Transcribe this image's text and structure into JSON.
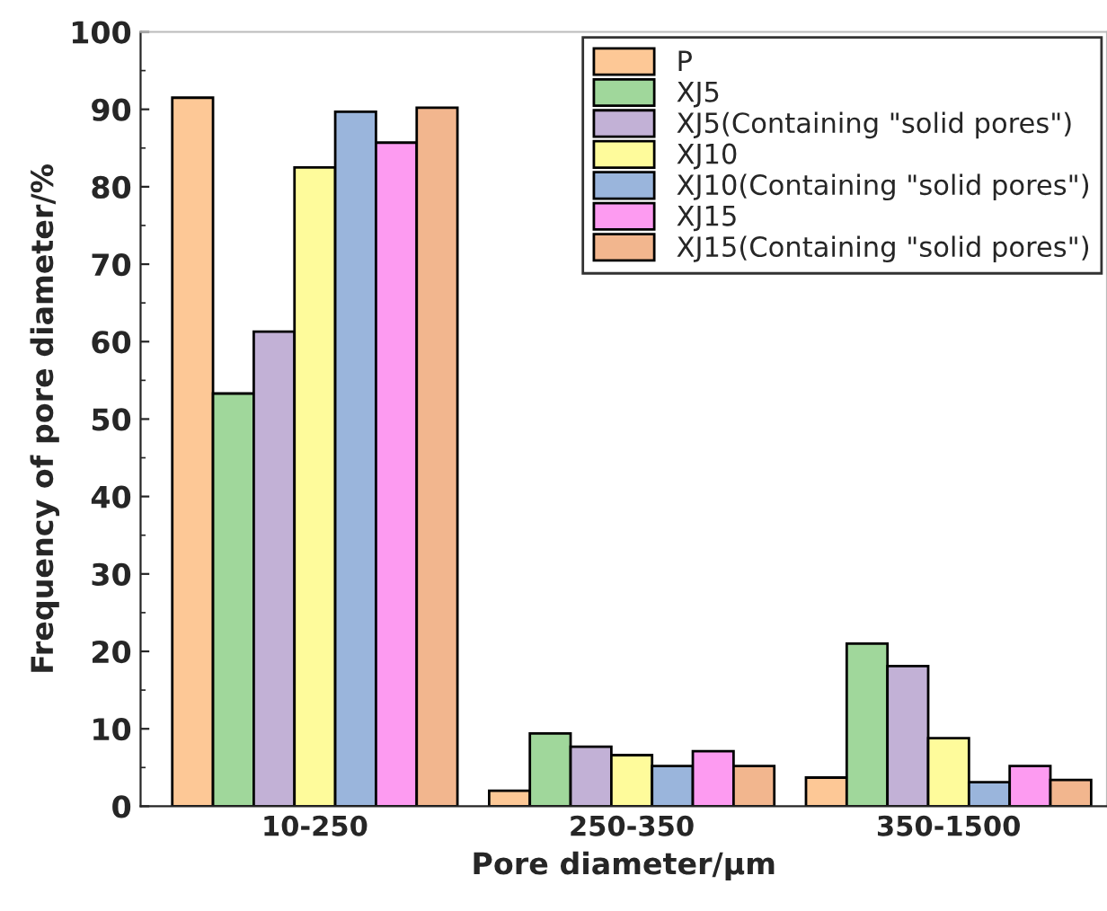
{
  "chart_data": {
    "type": "bar",
    "xlabel": "Pore diameter/μm",
    "ylabel": "Frequency of pore diameter/%",
    "categories": [
      "10-250",
      "250-350",
      "350-1500"
    ],
    "series": [
      {
        "name": "P",
        "color": "#fdc896",
        "values": [
          91.5,
          2.0,
          3.7
        ]
      },
      {
        "name": "XJ5",
        "color": "#a0d79b",
        "values": [
          53.3,
          9.4,
          21.0
        ]
      },
      {
        "name": "XJ5(Containing \"solid pores\")",
        "color": "#c2b1d6",
        "values": [
          61.3,
          7.7,
          18.1
        ]
      },
      {
        "name": "XJ10",
        "color": "#fefb9b",
        "values": [
          82.5,
          6.6,
          8.8
        ]
      },
      {
        "name": "XJ10(Containing \"solid pores\")",
        "color": "#9ab5dc",
        "values": [
          89.7,
          5.2,
          3.1
        ]
      },
      {
        "name": "XJ15",
        "color": "#fd9bf1",
        "values": [
          85.7,
          7.1,
          5.2
        ]
      },
      {
        "name": "XJ15(Containing \"solid pores\")",
        "color": "#f2b68e",
        "values": [
          90.2,
          5.2,
          3.4
        ]
      }
    ],
    "ylim": [
      0,
      100
    ],
    "yticks": [
      0,
      10,
      20,
      30,
      40,
      50,
      60,
      70,
      80,
      90,
      100
    ],
    "legend": "top right",
    "grid": false
  }
}
